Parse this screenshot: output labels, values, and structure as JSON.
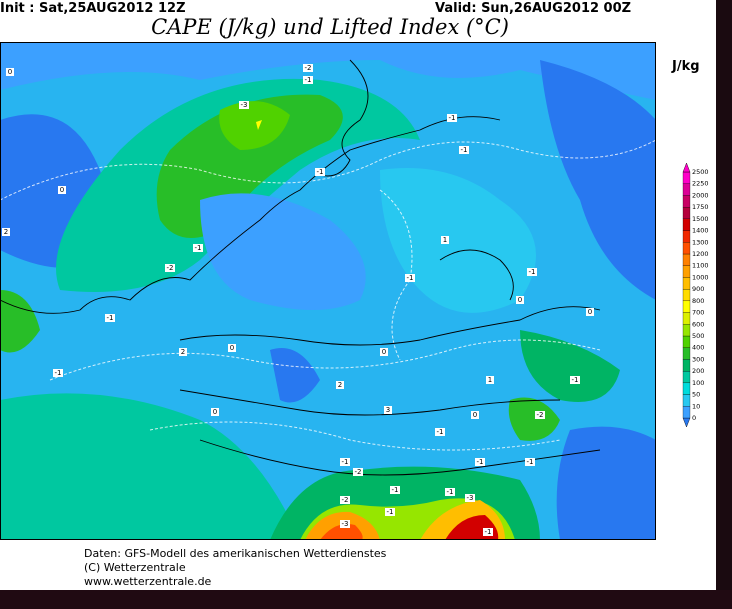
{
  "header": {
    "init": "Init : Sat,25AUG2012  12Z",
    "valid": "Valid: Sun,26AUG2012  00Z",
    "title": "CAPE (J/kg) und Lifted Index (°C)"
  },
  "legend": {
    "unit": "J/kg",
    "levels": [
      0,
      10,
      50,
      100,
      200,
      300,
      400,
      500,
      600,
      700,
      800,
      900,
      1000,
      1100,
      1200,
      1300,
      1400,
      1500,
      1750,
      2000,
      2250,
      2500
    ],
    "colors": [
      "#2878f0",
      "#3ca0ff",
      "#28c8f0",
      "#00dcdc",
      "#00c8a0",
      "#00b464",
      "#28be28",
      "#50d200",
      "#96e600",
      "#dcf000",
      "#ffff00",
      "#ffdc00",
      "#ffbe00",
      "#ffa000",
      "#ff8000",
      "#ff5000",
      "#f02800",
      "#d20000",
      "#b4003c",
      "#c80064",
      "#dc0096",
      "#ff00c8"
    ]
  },
  "map": {
    "labels": [
      0,
      -2,
      -1,
      -3,
      -1,
      -1,
      -1,
      0,
      2,
      -1,
      -2,
      1,
      -1,
      -1,
      -1,
      0,
      0,
      0,
      0,
      2,
      -1,
      1,
      -1,
      2,
      0,
      3,
      -2,
      0,
      -1,
      -1,
      -2,
      -1,
      -1,
      -1,
      -2,
      -1,
      -3,
      -1,
      -3,
      -1
    ]
  },
  "footer": {
    "line1": "Daten: GFS-Modell des amerikanischen Wetterdienstes",
    "line2": "(C) Wetterzentrale",
    "line3": "www.wetterzentrale.de"
  }
}
